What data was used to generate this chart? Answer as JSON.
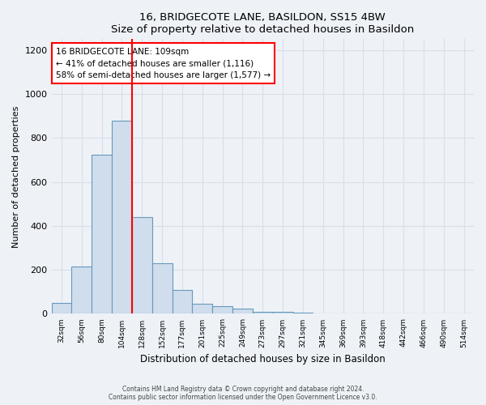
{
  "title": "16, BRIDGECOTE LANE, BASILDON, SS15 4BW",
  "subtitle": "Size of property relative to detached houses in Basildon",
  "xlabel": "Distribution of detached houses by size in Basildon",
  "ylabel": "Number of detached properties",
  "footer_line1": "Contains HM Land Registry data © Crown copyright and database right 2024.",
  "footer_line2": "Contains public sector information licensed under the Open Government Licence v3.0.",
  "categories": [
    "32sqm",
    "56sqm",
    "80sqm",
    "104sqm",
    "128sqm",
    "152sqm",
    "177sqm",
    "201sqm",
    "225sqm",
    "249sqm",
    "273sqm",
    "297sqm",
    "321sqm",
    "345sqm",
    "369sqm",
    "393sqm",
    "418sqm",
    "442sqm",
    "466sqm",
    "490sqm",
    "514sqm"
  ],
  "values": [
    50,
    215,
    725,
    880,
    440,
    230,
    108,
    47,
    35,
    22,
    10,
    8,
    5,
    0,
    0,
    0,
    0,
    0,
    0,
    0,
    0
  ],
  "bar_color": "#cfdded",
  "bar_edge_color": "#6699bb",
  "ylim": [
    0,
    1250
  ],
  "yticks": [
    0,
    200,
    400,
    600,
    800,
    1000,
    1200
  ],
  "vline_bin_index": 4,
  "vline_color": "red",
  "annotation_text": "16 BRIDGECOTE LANE: 109sqm\n← 41% of detached houses are smaller (1,116)\n58% of semi-detached houses are larger (1,577) →",
  "annotation_box_color": "white",
  "annotation_box_edge": "red",
  "background_color": "#eef2f7",
  "grid_color": "#d8dfe8"
}
